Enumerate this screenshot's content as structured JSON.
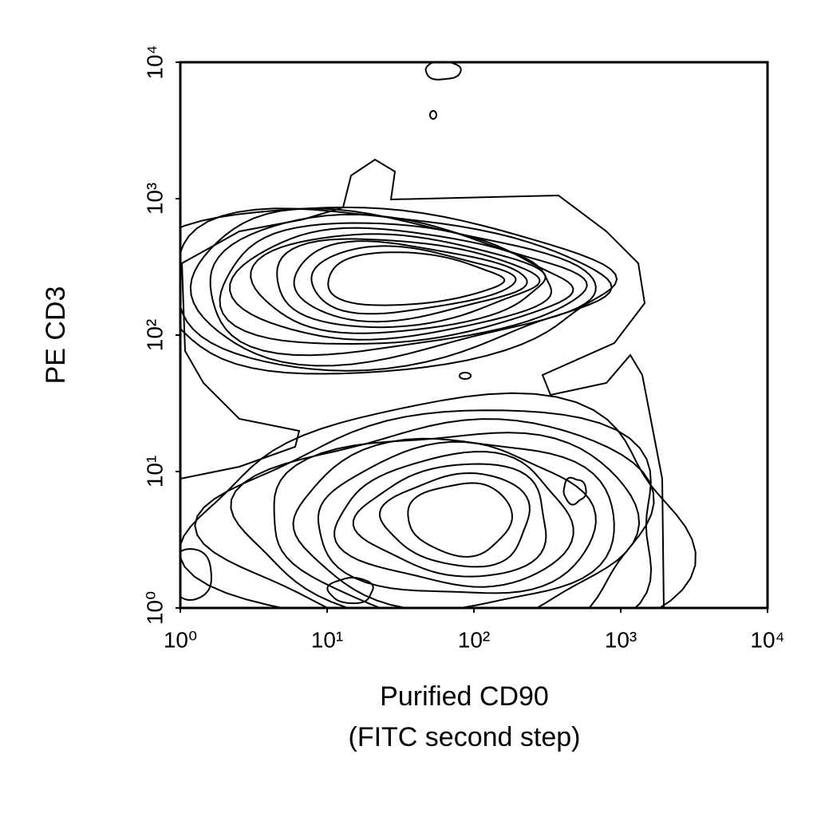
{
  "chart_data": {
    "type": "contour",
    "x_label": [
      "Purified CD90",
      "(FITC second step)"
    ],
    "y_label": "PE CD3",
    "x_log": true,
    "y_log": true,
    "xlim": [
      1,
      10000
    ],
    "ylim": [
      1,
      10000
    ],
    "xticks": [
      {
        "value": 1,
        "label": "10⁰"
      },
      {
        "value": 10,
        "label": "10¹"
      },
      {
        "value": 100,
        "label": "10²"
      },
      {
        "value": 1000,
        "label": "10³"
      },
      {
        "value": 10000,
        "label": "10⁴"
      }
    ],
    "yticks": [
      {
        "value": 1,
        "label": "10⁰"
      },
      {
        "value": 10,
        "label": "10¹"
      },
      {
        "value": 100,
        "label": "10²"
      },
      {
        "value": 1000,
        "label": "10³"
      },
      {
        "value": 10000,
        "label": "10⁴"
      }
    ],
    "color": "#000000"
  }
}
